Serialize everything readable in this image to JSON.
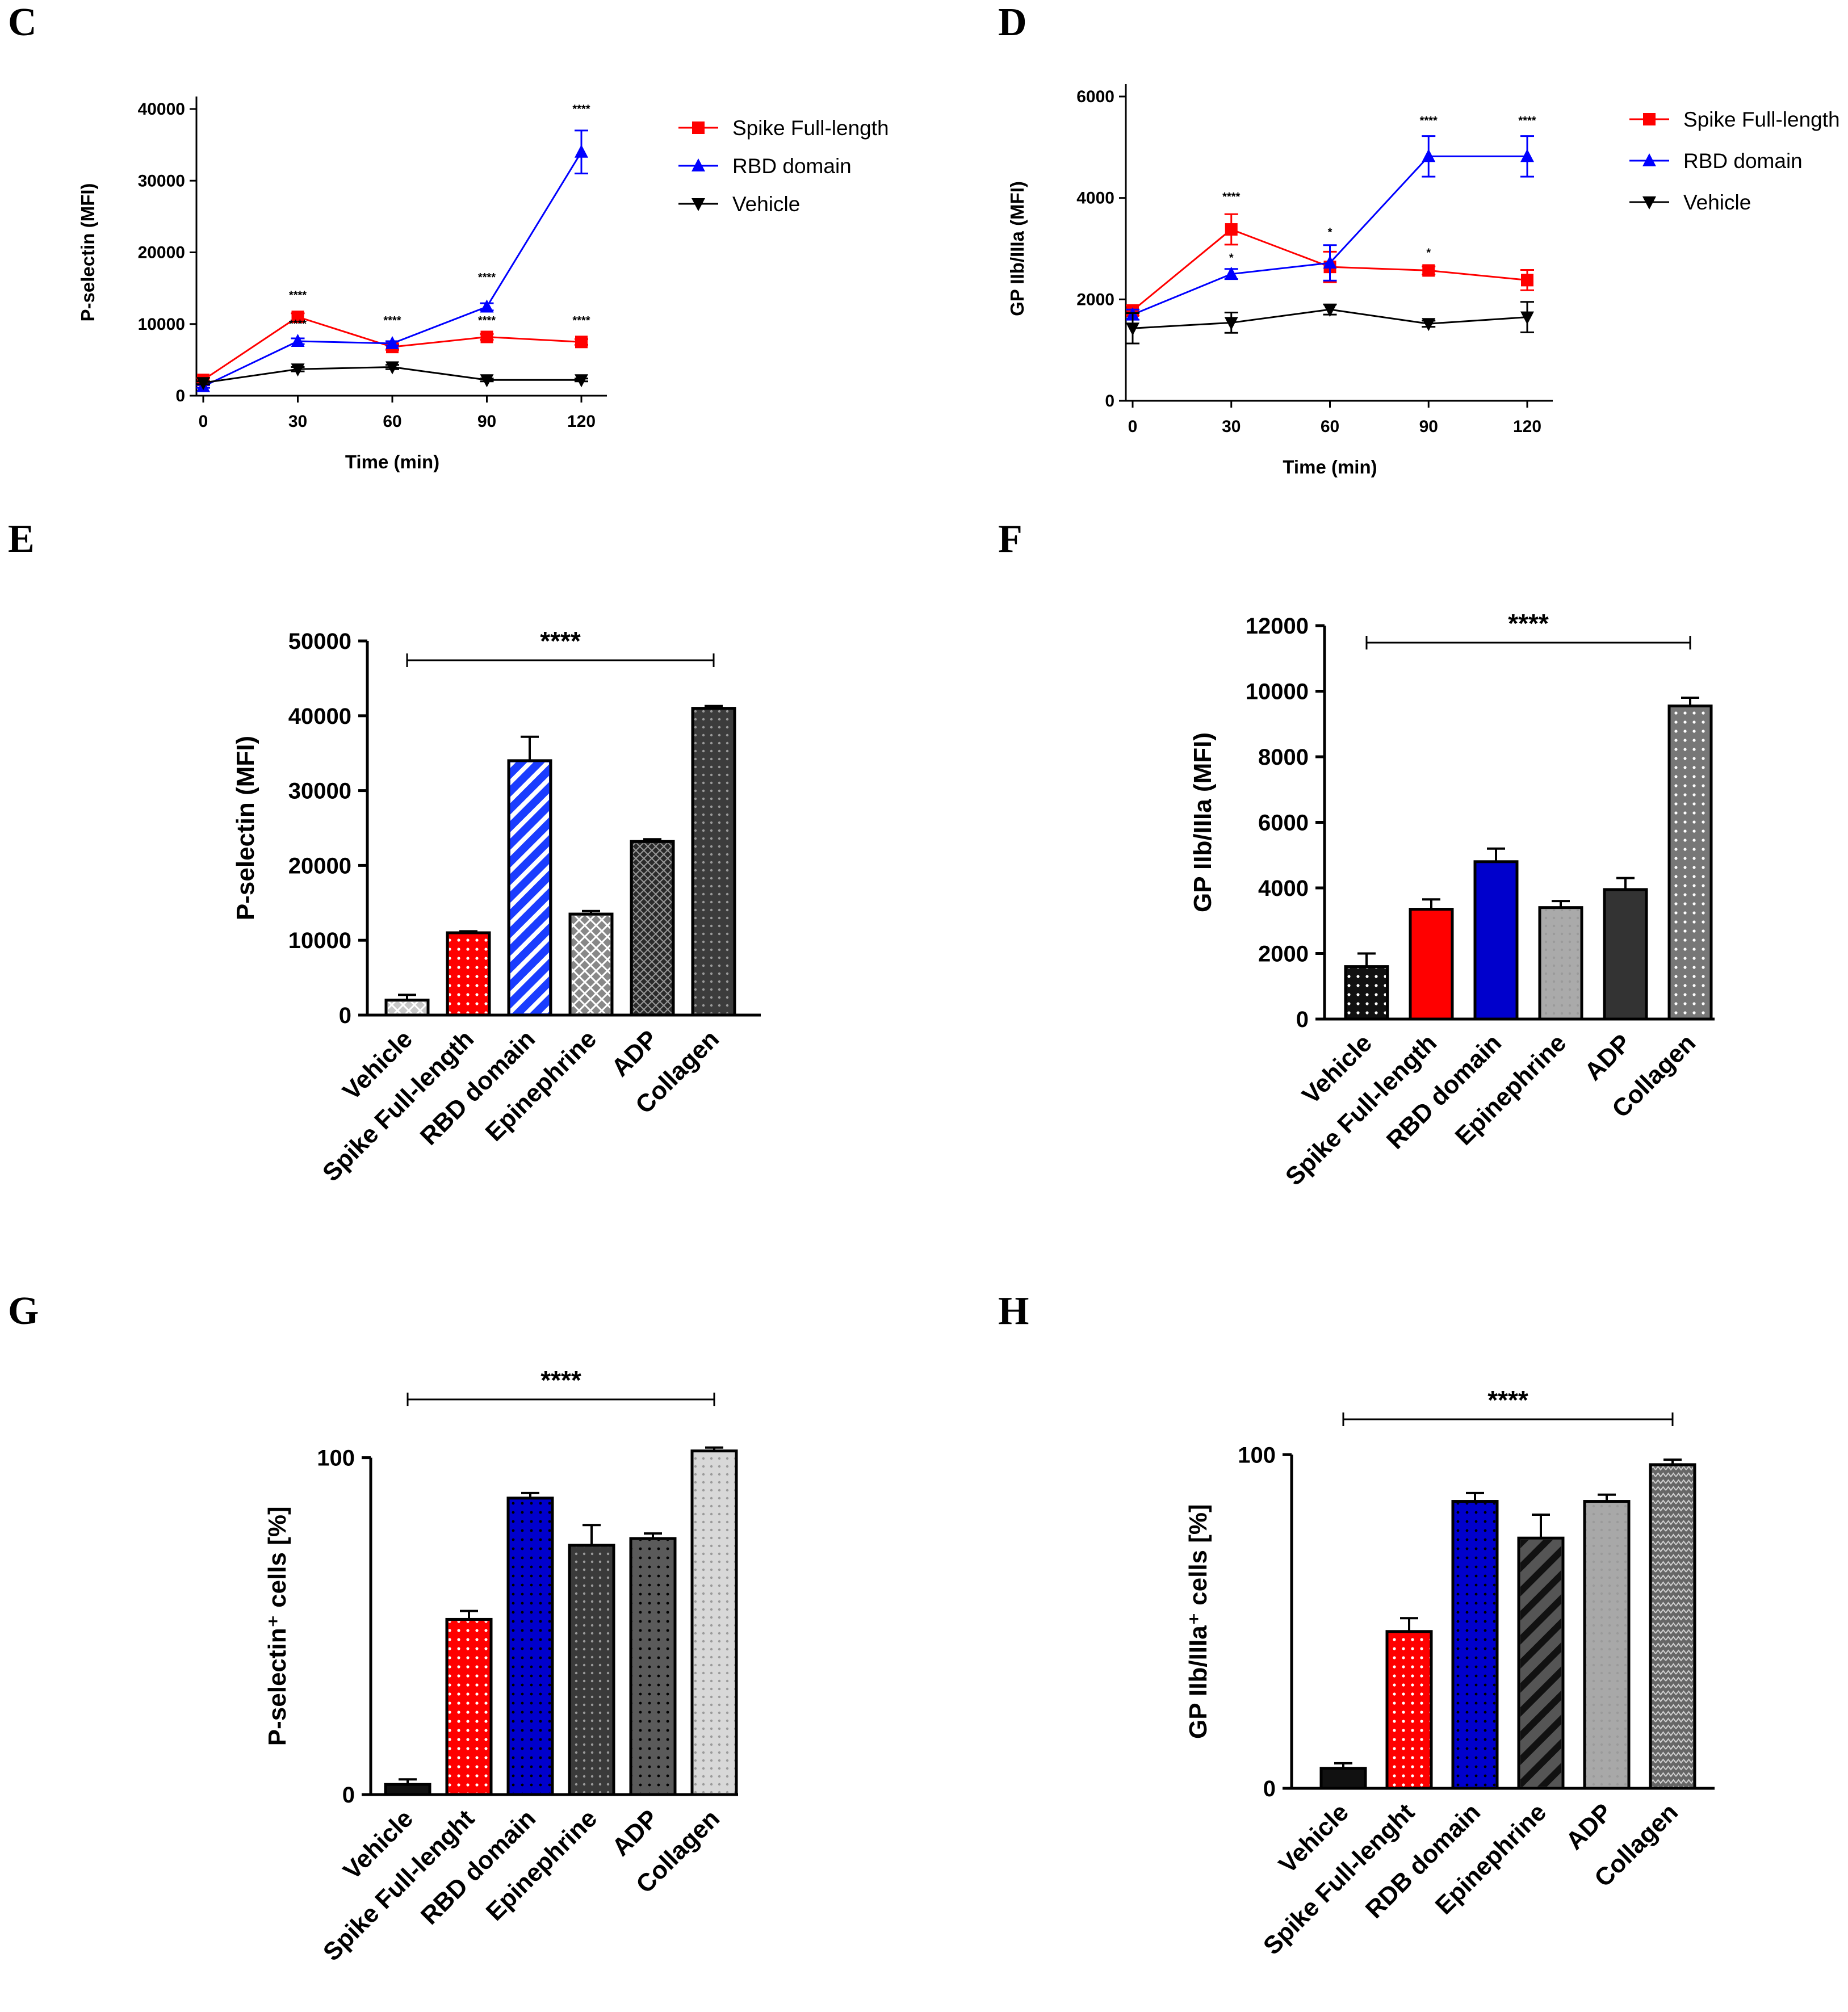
{
  "chart_data": [
    {
      "panel": "C",
      "type": "line",
      "x": [
        0,
        30,
        60,
        90,
        120
      ],
      "xlabel": "Time (min)",
      "ylabel": "P-selectin (MFI)",
      "ylim": [
        0,
        40000
      ],
      "xticks": [
        "0",
        "30",
        "60",
        "90",
        "120"
      ],
      "yticks": [
        "0",
        "10000",
        "20000",
        "30000",
        "40000"
      ],
      "series": [
        {
          "name": "Spike Full-length",
          "color": "#ff0000",
          "marker": "square",
          "values": [
            2200,
            11000,
            6800,
            8200,
            7500
          ],
          "errors": [
            300,
            500,
            400,
            400,
            400
          ]
        },
        {
          "name": "RBD domain",
          "color": "#0000ff",
          "marker": "triangle-up",
          "values": [
            1300,
            7600,
            7300,
            12400,
            34000
          ],
          "errors": [
            200,
            400,
            300,
            500,
            3000
          ]
        },
        {
          "name": "Vehicle",
          "color": "#000000",
          "marker": "triangle-down",
          "values": [
            1800,
            3700,
            4000,
            2200,
            2200
          ],
          "errors": [
            200,
            300,
            300,
            200,
            200
          ]
        }
      ],
      "annotations": [
        {
          "x": 30,
          "y": 13500,
          "text": "****"
        },
        {
          "x": 30,
          "y": 9500,
          "text": "****"
        },
        {
          "x": 60,
          "y": 10000,
          "text": "****"
        },
        {
          "x": 90,
          "y": 16000,
          "text": "****"
        },
        {
          "x": 90,
          "y": 10000,
          "text": "****"
        },
        {
          "x": 120,
          "y": 39500,
          "text": "****"
        },
        {
          "x": 120,
          "y": 10000,
          "text": "****"
        }
      ]
    },
    {
      "panel": "D",
      "type": "line",
      "x": [
        0,
        30,
        60,
        90,
        120
      ],
      "xlabel": "Time (min)",
      "ylabel": "GP IIb/IIIa (MFI)",
      "ylim": [
        0,
        6000
      ],
      "xticks": [
        "0",
        "30",
        "60",
        "90",
        "120"
      ],
      "yticks": [
        "0",
        "2000",
        "4000",
        "6000"
      ],
      "series": [
        {
          "name": "Spike Full-length",
          "color": "#ff0000",
          "marker": "square",
          "values": [
            1780,
            3380,
            2640,
            2570,
            2380
          ],
          "errors": [
            100,
            300,
            300,
            80,
            200
          ]
        },
        {
          "name": "RBD domain",
          "color": "#0000ff",
          "marker": "triangle-up",
          "values": [
            1700,
            2500,
            2720,
            4820,
            4820
          ],
          "errors": [
            100,
            100,
            350,
            400,
            400
          ]
        },
        {
          "name": "Vehicle",
          "color": "#000000",
          "marker": "triangle-down",
          "values": [
            1430,
            1540,
            1800,
            1520,
            1650
          ],
          "errors": [
            300,
            200,
            100,
            60,
            300
          ]
        }
      ],
      "annotations": [
        {
          "x": 30,
          "y": 3950,
          "text": "****"
        },
        {
          "x": 30,
          "y": 2750,
          "text": "*"
        },
        {
          "x": 60,
          "y": 3250,
          "text": "*"
        },
        {
          "x": 90,
          "y": 5450,
          "text": "****"
        },
        {
          "x": 90,
          "y": 2850,
          "text": "*"
        },
        {
          "x": 120,
          "y": 5450,
          "text": "****"
        }
      ]
    },
    {
      "panel": "E",
      "type": "bar",
      "categories": [
        "Vehicle",
        "Spike Full-length",
        "RBD domain",
        "Epinephrine",
        "ADP",
        "Collagen"
      ],
      "values": [
        2000,
        11000,
        34000,
        13500,
        23200,
        41000
      ],
      "errors": [
        700,
        200,
        3200,
        400,
        300,
        300
      ],
      "colors": [
        "#c8c8c8",
        "#ff0000",
        "#1a3cff",
        "#888888",
        "#2a2a2a",
        "#3c3c3c"
      ],
      "ylabel": "P-selectin (MFI)",
      "ylim": [
        0,
        50000
      ],
      "yticks": [
        "0",
        "10000",
        "20000",
        "30000",
        "40000",
        "50000"
      ],
      "significance": "****"
    },
    {
      "panel": "F",
      "type": "bar",
      "categories": [
        "Vehicle",
        "Spike Full-length",
        "RBD domain",
        "Epinephrine",
        "ADP",
        "Collagen"
      ],
      "values": [
        1600,
        3350,
        4800,
        3400,
        3950,
        9550
      ],
      "errors": [
        400,
        300,
        400,
        200,
        350,
        250
      ],
      "colors": [
        "#111111",
        "#ff0000",
        "#0000cc",
        "#aaaaaa",
        "#333333",
        "#777777"
      ],
      "ylabel": "GP IIb/IIIa (MFI)",
      "ylim": [
        0,
        12000
      ],
      "yticks": [
        "0",
        "2000",
        "4000",
        "6000",
        "8000",
        "10000",
        "12000"
      ],
      "significance": "****"
    },
    {
      "panel": "G",
      "type": "bar",
      "categories": [
        "Vehicle",
        "Spike Full-lenght",
        "RBD domain",
        "Epinephrine",
        "ADP",
        "Collagen"
      ],
      "values": [
        3,
        52,
        88,
        74,
        76,
        102
      ],
      "errors": [
        1.5,
        2.5,
        1.5,
        6,
        1.5,
        1
      ],
      "colors": [
        "#111111",
        "#ff0000",
        "#0000cc",
        "#3a3a3a",
        "#5a5a5a",
        "#d8d8d8"
      ],
      "ylabel": "P-selectin⁺ cells [%]",
      "ylim": [
        0,
        106
      ],
      "yticks": [
        "0",
        "100"
      ],
      "significance": "****"
    },
    {
      "panel": "H",
      "type": "bar",
      "categories": [
        "Vehicle",
        "Spike Full-lenght",
        "RDB domain",
        "Epinephrine",
        "ADP",
        "Collagen"
      ],
      "values": [
        6,
        47,
        86,
        75,
        86,
        97
      ],
      "errors": [
        1.5,
        4,
        2.5,
        7,
        2,
        1.5
      ],
      "colors": [
        "#111111",
        "#ff0000",
        "#0000cc",
        "#555555",
        "#a8a8a8",
        "#666666"
      ],
      "ylabel": "GP IIb/IIIa⁺ cells [%]",
      "ylim": [
        0,
        106
      ],
      "yticks": [
        "0",
        "100"
      ],
      "significance": "****"
    }
  ]
}
